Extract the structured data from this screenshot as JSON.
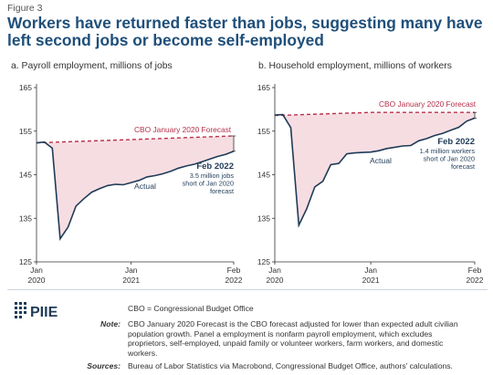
{
  "figure_label": "Figure 3",
  "title": "Workers have returned faster than jobs, suggesting many have left second jobs or become self-employed",
  "chart_data": [
    {
      "type": "line",
      "title": "a. Payroll employment, millions of jobs",
      "ylim": [
        125,
        165
      ],
      "yticks": [
        "165",
        "155",
        "145",
        "135",
        "125"
      ],
      "xticks": [
        {
          "month": "Jan",
          "year": "2020"
        },
        {
          "month": "Jan",
          "year": "2021"
        },
        {
          "month": "Feb",
          "year": "2022"
        }
      ],
      "series": [
        {
          "name": "Actual",
          "style": "solid",
          "color": "#1f3b57",
          "x": [
            "2020-01",
            "2020-02",
            "2020-03",
            "2020-04",
            "2020-05",
            "2020-06",
            "2020-07",
            "2020-08",
            "2020-09",
            "2020-10",
            "2020-11",
            "2020-12",
            "2021-01",
            "2021-02",
            "2021-03",
            "2021-04",
            "2021-05",
            "2021-06",
            "2021-07",
            "2021-08",
            "2021-09",
            "2021-10",
            "2021-11",
            "2021-12",
            "2022-01",
            "2022-02"
          ],
          "values": [
            152.3,
            152.5,
            151.1,
            130.3,
            133.0,
            137.8,
            139.5,
            141.0,
            141.8,
            142.5,
            142.8,
            142.7,
            143.2,
            143.7,
            144.5,
            144.8,
            145.2,
            145.8,
            146.5,
            147.0,
            147.4,
            148.0,
            148.6,
            149.2,
            149.7,
            150.4
          ]
        },
        {
          "name": "CBO January 2020 Forecast",
          "style": "dashed",
          "color": "#b5304a",
          "x": [
            "2020-01",
            "2022-02"
          ],
          "values": [
            152.3,
            153.9
          ]
        }
      ],
      "annotation_value": "Feb 2022",
      "annotation_text": [
        "3.5 million jobs",
        "short of Jan 2020",
        "forecast"
      ]
    },
    {
      "type": "line",
      "title": "b. Household employment, millions of workers",
      "ylim": [
        125,
        165
      ],
      "yticks": [
        "165",
        "155",
        "145",
        "135",
        "125"
      ],
      "xticks": [
        {
          "month": "Jan",
          "year": "2020"
        },
        {
          "month": "Jan",
          "year": "2021"
        },
        {
          "month": "Feb",
          "year": "2022"
        }
      ],
      "series": [
        {
          "name": "Actual",
          "style": "solid",
          "color": "#1f3b57",
          "x": [
            "2020-01",
            "2020-02",
            "2020-03",
            "2020-04",
            "2020-05",
            "2020-06",
            "2020-07",
            "2020-08",
            "2020-09",
            "2020-10",
            "2020-11",
            "2020-12",
            "2021-01",
            "2021-02",
            "2021-03",
            "2021-04",
            "2021-05",
            "2021-06",
            "2021-07",
            "2021-08",
            "2021-09",
            "2021-10",
            "2021-11",
            "2021-12",
            "2022-01",
            "2022-02"
          ],
          "values": [
            158.7,
            158.8,
            155.8,
            133.4,
            137.2,
            142.2,
            143.5,
            147.3,
            147.6,
            149.8,
            150.0,
            150.1,
            150.2,
            150.5,
            151.0,
            151.3,
            151.6,
            151.7,
            152.8,
            153.3,
            154.0,
            154.5,
            155.2,
            155.9,
            157.3,
            158.0
          ]
        },
        {
          "name": "CBO January 2020 Forecast",
          "style": "dashed",
          "color": "#b5304a",
          "x": [
            "2020-01",
            "2021-01",
            "2022-02"
          ],
          "values": [
            158.6,
            159.3,
            159.3
          ]
        }
      ],
      "annotation_value": "Feb 2022",
      "annotation_text": [
        "1.4 million workers",
        "short of Jan 2020",
        "forecast"
      ]
    }
  ],
  "footer": {
    "logo_text": "PIIE",
    "abbrev": "CBO = Congressional Budget Office",
    "note_label": "Note:",
    "note_lines": [
      "CBO January 2020 Forecast is the CBO forecast adjusted for lower than expected adult civilian",
      "population growth. Panel a employment is nonfarm payroll employment, which excludes",
      "proprietors, self-employed, unpaid family or volunteer workers, farm workers, and domestic",
      "workers."
    ],
    "sources_label": "Sources:",
    "sources_text": "Bureau of Labor Statistics via Macrobond, Congressional Budget Office, authors' calculations."
  },
  "colors": {
    "actual": "#1f3b57",
    "forecast": "#b5304a",
    "fill": "#f6dde2",
    "title": "#1f4f7a"
  }
}
